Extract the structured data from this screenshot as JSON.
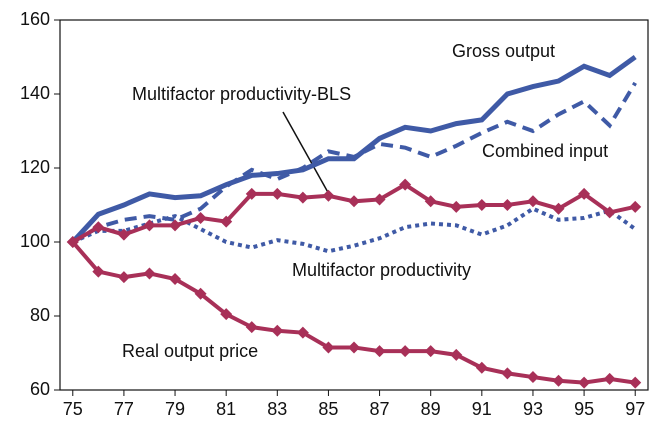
{
  "chart_data": {
    "type": "line",
    "x": [
      75,
      76,
      77,
      78,
      79,
      80,
      81,
      82,
      83,
      84,
      85,
      86,
      87,
      88,
      89,
      90,
      91,
      92,
      93,
      94,
      95,
      96,
      97
    ],
    "xlim": [
      74.5,
      97.5
    ],
    "xticks": [
      75,
      77,
      79,
      81,
      83,
      85,
      87,
      89,
      91,
      93,
      95,
      97
    ],
    "ylim": [
      60,
      160
    ],
    "yticks": [
      60,
      80,
      100,
      120,
      140,
      160
    ],
    "series": [
      {
        "name": "Gross output",
        "color": "#3f5aa6",
        "style": "solid",
        "marker": "none",
        "values": [
          100,
          107.5,
          110,
          113,
          112,
          112.5,
          115.5,
          118,
          118.5,
          119.5,
          122.5,
          122.5,
          128,
          131,
          130,
          132,
          133,
          140,
          142,
          143.5,
          147.5,
          145,
          150
        ]
      },
      {
        "name": "Combined input",
        "color": "#3f5aa6",
        "style": "dashed",
        "marker": "none",
        "values": [
          100,
          104,
          106,
          107,
          106,
          109,
          115,
          119.5,
          117,
          120,
          124.5,
          123,
          126.5,
          125.5,
          123,
          126,
          129.5,
          132.5,
          130,
          134.5,
          138,
          131.5,
          143
        ]
      },
      {
        "name": "Multifactor productivity",
        "color": "#3f5aa6",
        "style": "dotted",
        "marker": "none",
        "values": [
          100,
          103,
          103,
          105,
          107,
          103.5,
          100,
          98.5,
          100.5,
          99.5,
          97.5,
          99,
          101,
          104,
          105,
          104.5,
          102,
          104.5,
          109,
          106,
          106.5,
          108.5,
          103.5
        ]
      },
      {
        "name": "Multifactor productivity-BLS",
        "color": "#a83058",
        "style": "solid",
        "marker": "diamond",
        "values": [
          100,
          104,
          102,
          104.5,
          104.5,
          106.5,
          105.5,
          113,
          113,
          112,
          112.5,
          111,
          111.5,
          115.5,
          111,
          109.5,
          110,
          110,
          111,
          109,
          113,
          108,
          109.5
        ]
      },
      {
        "name": "Real output price",
        "color": "#a83058",
        "style": "solid",
        "marker": "diamond",
        "values": [
          100,
          92,
          90.5,
          91.5,
          90,
          86,
          80.5,
          77,
          76,
          75.5,
          71.5,
          71.5,
          70.5,
          70.5,
          70.5,
          69.5,
          66,
          64.5,
          63.5,
          62.5,
          62,
          63,
          62
        ]
      }
    ]
  }
}
